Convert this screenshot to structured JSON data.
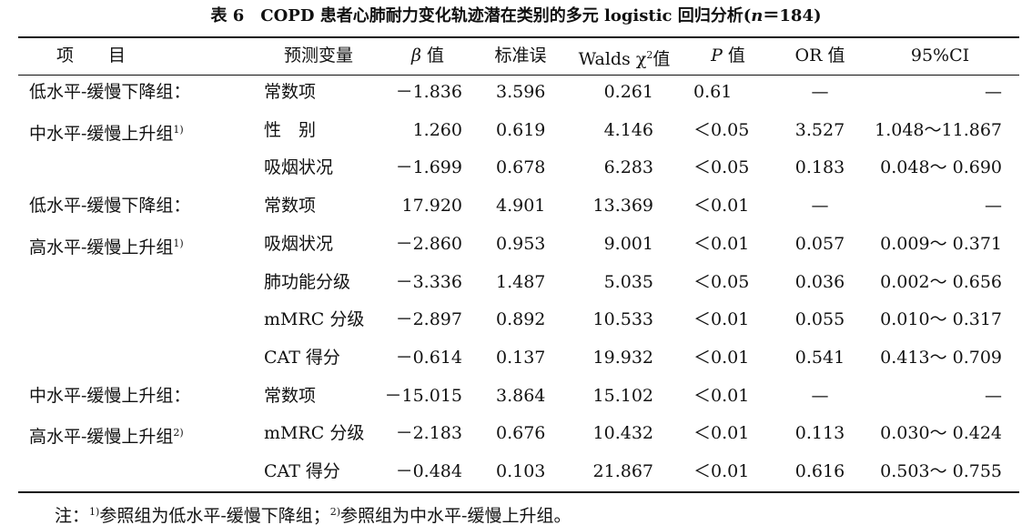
{
  "title": [
    {
      "t": "表 6　COPD 患者心肺耐力变化轨迹潜在类别的多元 logistic 回归分析("
    },
    {
      "t": "n",
      "style": "i"
    },
    {
      "t": "＝184)"
    }
  ],
  "headers": [
    [
      {
        "t": "项　　目"
      }
    ],
    [
      {
        "t": "预测变量"
      }
    ],
    [
      {
        "t": "β",
        "style": "i"
      },
      {
        "t": " 值"
      }
    ],
    [
      {
        "t": "标准误"
      }
    ],
    [
      {
        "t": "Walds χ"
      },
      {
        "t": "2",
        "style": "sup"
      },
      {
        "t": "值"
      }
    ],
    [
      {
        "t": "P",
        "style": "i"
      },
      {
        "t": " 值"
      }
    ],
    [
      {
        "t": "OR 值"
      }
    ],
    [
      {
        "t": "95%CI"
      }
    ]
  ],
  "rows": [
    {
      "group": [
        {
          "t": "低水平-缓慢下降组："
        }
      ],
      "cells": [
        "常数项",
        "－1.836",
        "3.596",
        "0.261",
        "0.61",
        "—",
        "—"
      ]
    },
    {
      "group": [
        {
          "t": "中水平-缓慢上升组"
        },
        {
          "t": "1)",
          "style": "sup"
        }
      ],
      "cells": [
        "性　别",
        "1.260",
        "0.619",
        "4.146",
        "＜0.05",
        "3.527",
        "1.048～11.867"
      ]
    },
    {
      "group": null,
      "cells": [
        "吸烟状况",
        "－1.699",
        "0.678",
        "6.283",
        "＜0.05",
        "0.183",
        "0.048～ 0.690"
      ]
    },
    {
      "group": [
        {
          "t": "低水平-缓慢下降组："
        }
      ],
      "cells": [
        "常数项",
        "17.920",
        "4.901",
        "13.369",
        "＜0.01",
        "—",
        "—"
      ]
    },
    {
      "group": [
        {
          "t": "高水平-缓慢上升组"
        },
        {
          "t": "1)",
          "style": "sup"
        }
      ],
      "cells": [
        "吸烟状况",
        "－2.860",
        "0.953",
        "9.001",
        "＜0.01",
        "0.057",
        "0.009～ 0.371"
      ]
    },
    {
      "group": null,
      "cells": [
        "肺功能分级",
        "－3.336",
        "1.487",
        "5.035",
        "＜0.05",
        "0.036",
        "0.002～ 0.656"
      ]
    },
    {
      "group": null,
      "cells": [
        "mMRC 分级",
        "－2.897",
        "0.892",
        "10.533",
        "＜0.01",
        "0.055",
        "0.010～ 0.317"
      ]
    },
    {
      "group": null,
      "cells": [
        "CAT 得分",
        "－0.614",
        "0.137",
        "19.932",
        "＜0.01",
        "0.541",
        "0.413～ 0.709"
      ]
    },
    {
      "group": [
        {
          "t": "中水平-缓慢上升组："
        }
      ],
      "cells": [
        "常数项",
        "－15.015",
        "3.864",
        "15.102",
        "＜0.01",
        "—",
        "—"
      ]
    },
    {
      "group": [
        {
          "t": "高水平-缓慢上升组"
        },
        {
          "t": "2)",
          "style": "sup"
        }
      ],
      "cells": [
        "mMRC 分级",
        "－2.183",
        "0.676",
        "10.432",
        "＜0.01",
        "0.113",
        "0.030～ 0.424"
      ]
    },
    {
      "group": null,
      "cells": [
        "CAT 得分",
        "－0.484",
        "0.103",
        "21.867",
        "＜0.01",
        "0.616",
        "0.503～ 0.755"
      ]
    }
  ],
  "note": [
    {
      "t": "注："
    },
    {
      "t": "1)",
      "style": "sup"
    },
    {
      "t": "参照组为低水平-缓慢下降组；"
    },
    {
      "t": "2)",
      "style": "sup"
    },
    {
      "t": "参照组为中水平-缓慢上升组。"
    }
  ]
}
